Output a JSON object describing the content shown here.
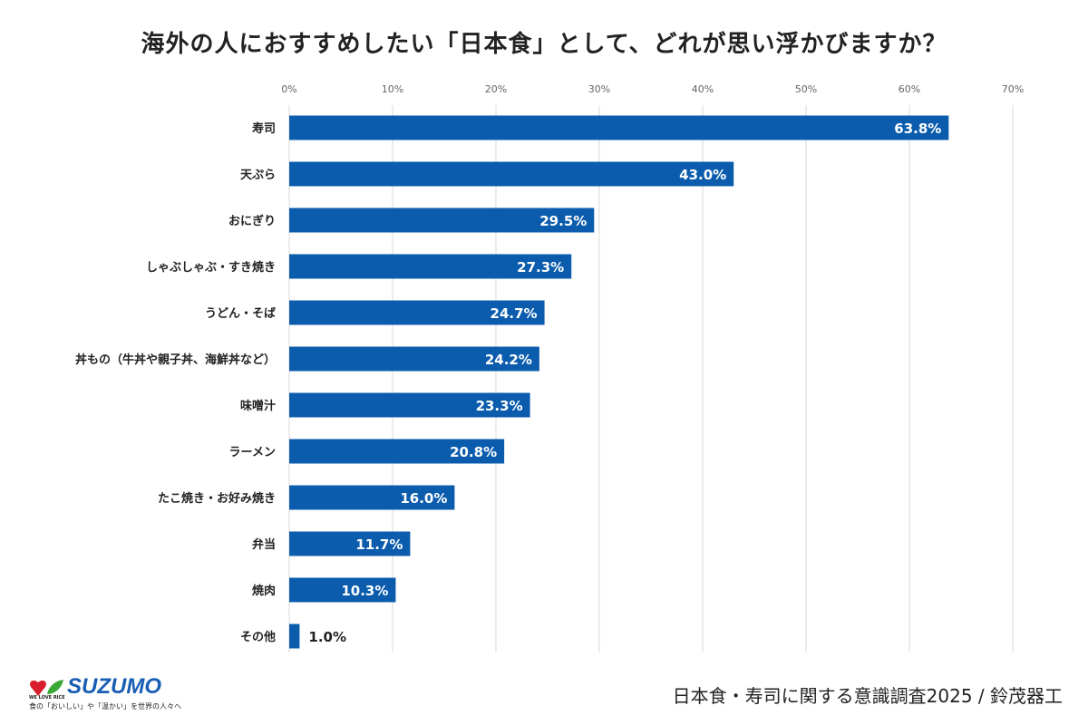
{
  "title": "海外の人におすすめしたい「日本食」として、どれが思い浮かびますか？",
  "source": "日本食・寿司に関する意識調査2025 / 鈴茂器工",
  "logo": {
    "brand": "SUZUMO",
    "small": "WE LOVE RICE",
    "tagline": "食の「おいしい」や「温かい」を世界の人々へ"
  },
  "colors": {
    "bar": "#0b5cad",
    "grid": "#d9d9d9"
  },
  "chart_data": {
    "type": "bar",
    "orientation": "horizontal",
    "categories": [
      "寿司",
      "天ぷら",
      "おにぎり",
      "しゃぶしゃぶ・すき焼き",
      "うどん・そば",
      "丼もの（牛丼や親子丼、海鮮丼など）",
      "味噌汁",
      "ラーメン",
      "たこ焼き・お好み焼き",
      "弁当",
      "焼肉",
      "その他"
    ],
    "values": [
      63.8,
      43.0,
      29.5,
      27.3,
      24.7,
      24.2,
      23.3,
      20.8,
      16.0,
      11.7,
      10.3,
      1.0
    ],
    "data_labels": [
      "63.8%",
      "43.0%",
      "29.5%",
      "27.3%",
      "24.7%",
      "24.2%",
      "23.3%",
      "20.8%",
      "16.0%",
      "11.7%",
      "10.3%",
      "1.0%"
    ],
    "xlim": [
      0,
      70
    ],
    "xticks": [
      "0%",
      "10%",
      "20%",
      "30%",
      "40%",
      "50%",
      "60%",
      "70%"
    ],
    "grid": true,
    "legend": "none"
  }
}
